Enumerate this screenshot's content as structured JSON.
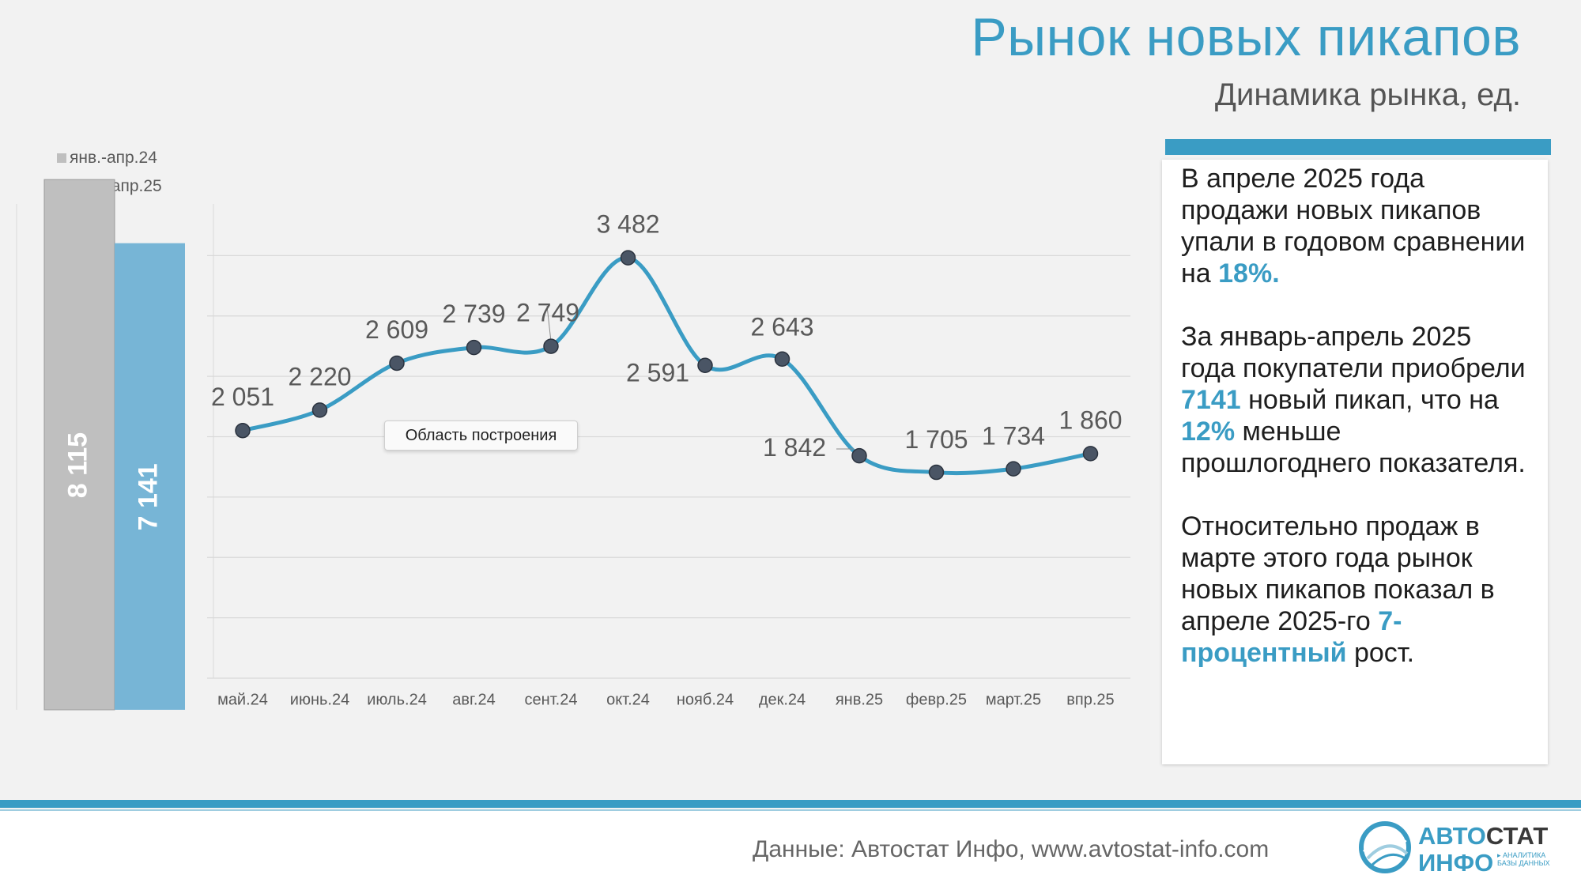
{
  "header": {
    "title": "Рынок новых пикапов",
    "subtitle": "Динамика рынка, ед."
  },
  "legend": {
    "items": [
      {
        "label": "янв.-апр.24",
        "color": "#bfbfbf"
      },
      {
        "label": "янв.- апр.25",
        "color": "#77b5d6"
      }
    ]
  },
  "tooltip": "Область построения",
  "chart_data": [
    {
      "type": "bar",
      "categories": [
        "янв.-апр.24",
        "янв.- апр.25"
      ],
      "values": [
        8115,
        7141
      ],
      "value_labels": [
        "8 115",
        "7 141"
      ],
      "colors": [
        "#bfbfbf",
        "#77b5d6"
      ],
      "ylim": [
        0,
        9000
      ]
    },
    {
      "type": "line",
      "categories": [
        "май.24",
        "июнь.24",
        "июль.24",
        "авг.24",
        "сент.24",
        "окт.24",
        "нояб.24",
        "дек.24",
        "янв.25",
        "февр.25",
        "март.25",
        "впр.25"
      ],
      "values": [
        2051,
        2220,
        2609,
        2739,
        2749,
        3482,
        2591,
        2643,
        1842,
        1705,
        1734,
        1860
      ],
      "value_labels": [
        "2 051",
        "2 220",
        "2 609",
        "2 739",
        "2 749",
        "3 482",
        "2 591",
        "2 643",
        "1 842",
        "1 705",
        "1 734",
        "1 860"
      ],
      "ylim": [
        0,
        4000
      ],
      "grid": true,
      "color": "#3a9cc4"
    }
  ],
  "panel": {
    "p1": [
      {
        "text": "В апреле 2025 года продажи новых пикапов упали в годовом сравнении на ",
        "hl": false
      },
      {
        "text": "18%.",
        "hl": true
      }
    ],
    "p2": [
      {
        "text": "За январь-апрель 2025 года покупатели приобрели ",
        "hl": false
      },
      {
        "text": "7141",
        "hl": true
      },
      {
        "text": " новый пикап, что на ",
        "hl": false
      },
      {
        "text": "12%",
        "hl": true
      },
      {
        "text": " меньше прошлогоднего показателя.",
        "hl": false
      }
    ],
    "p3": [
      {
        "text": "Относительно продаж в марте этого года рынок новых пикапов показал в апреле 2025-го ",
        "hl": false
      },
      {
        "text": "7-процентный",
        "hl": true
      },
      {
        "text": " рост.",
        "hl": false
      }
    ]
  },
  "footer": {
    "source": "Данные: Автостат Инфо, www.avtostat-info.com",
    "logo_top_a": "АВТО",
    "logo_top_b": "СТАТ",
    "logo_bottom": "ИНФО",
    "logo_small_1": "▸ АНАЛИТИКА",
    "logo_small_2": "БАЗЫ ДАННЫХ"
  }
}
